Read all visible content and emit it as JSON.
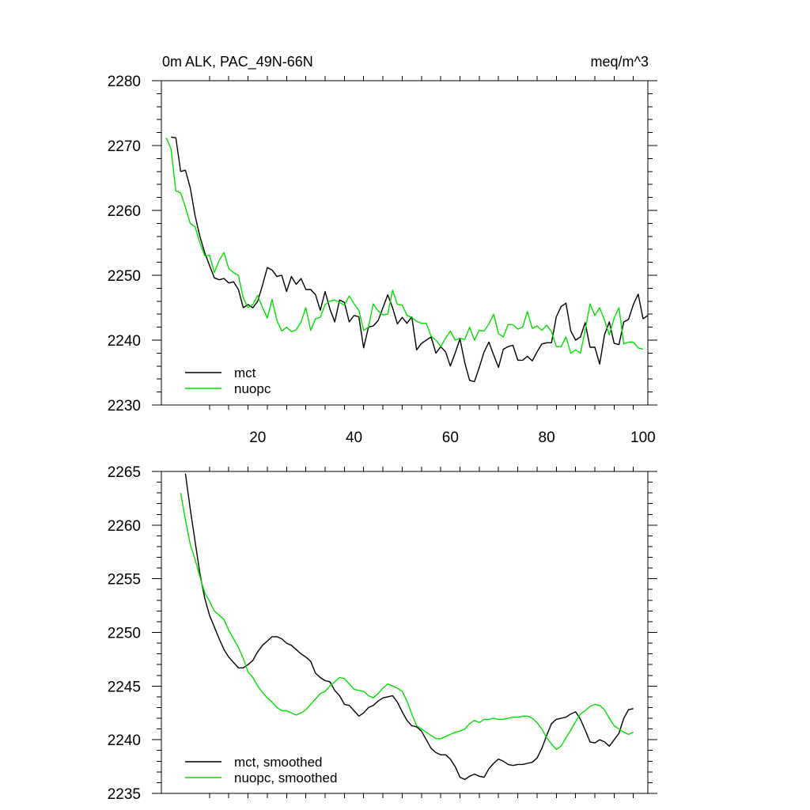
{
  "chart_data": [
    {
      "type": "line",
      "title": "0m ALK, PAC_49N-66N",
      "units": "meq/m^3",
      "xlim": [
        0,
        101
      ],
      "ylim": [
        2230,
        2280
      ],
      "xticks": [
        20,
        40,
        60,
        80,
        100
      ],
      "yticks": [
        2230,
        2240,
        2250,
        2260,
        2270,
        2280
      ],
      "legend": "bottom-left",
      "series": [
        {
          "name": "mct",
          "color": "#000000",
          "x": [
            2,
            3,
            4,
            5,
            6,
            7,
            8,
            9,
            10,
            11,
            12,
            13,
            14,
            15,
            16,
            17,
            18,
            19,
            20,
            21,
            22,
            23,
            24,
            25,
            26,
            27,
            28,
            29,
            30,
            31,
            32,
            33,
            34,
            35,
            36,
            37,
            38,
            39,
            40,
            41,
            42,
            43,
            44,
            45,
            46,
            47,
            48,
            49,
            50,
            51,
            52,
            53,
            54,
            55,
            56,
            57,
            58,
            59,
            60,
            61,
            62,
            63,
            64,
            65,
            66,
            67,
            68,
            69,
            70,
            71,
            72,
            73,
            74,
            75,
            76,
            77,
            78,
            79,
            80,
            81,
            82,
            83,
            84,
            85,
            86,
            87,
            88,
            89,
            90,
            91,
            92,
            93,
            94,
            95,
            96,
            97,
            98,
            99,
            100,
            101
          ],
          "y": [
            2271.3,
            2271.2,
            2266.0,
            2266.2,
            2263.5,
            2259.2,
            2256.0,
            2253.5,
            2251.5,
            2249.6,
            2249.3,
            2249.5,
            2248.8,
            2249.0,
            2247.8,
            2245.0,
            2245.5,
            2245.0,
            2246.0,
            2248.5,
            2251.2,
            2250.8,
            2249.8,
            2250.0,
            2247.5,
            2249.8,
            2248.6,
            2249.5,
            2247.8,
            2247.8,
            2247.0,
            2244.6,
            2247.5,
            2244.8,
            2242.8,
            2246.2,
            2245.8,
            2242.8,
            2243.8,
            2243.6,
            2238.8,
            2242.0,
            2242.2,
            2243.0,
            2245.0,
            2247.0,
            2245.0,
            2242.5,
            2243.5,
            2242.6,
            2243.6,
            2238.5,
            2239.5,
            2240.0,
            2240.5,
            2238.0,
            2239.0,
            2238.2,
            2236.0,
            2238.0,
            2240.2,
            2236.5,
            2233.8,
            2233.6,
            2235.8,
            2238.2,
            2239.7,
            2237.7,
            2235.8,
            2238.6,
            2239.0,
            2239.2,
            2236.9,
            2236.9,
            2237.5,
            2236.8,
            2238.2,
            2239.4,
            2239.6,
            2239.6,
            2243.6,
            2245.2,
            2245.7,
            2241.4,
            2240.0,
            2240.5,
            2242.7,
            2238.9,
            2238.9,
            2236.3,
            2240.8,
            2242.8,
            2239.5,
            2239.3,
            2242.8,
            2243.2,
            2245.5,
            2247.1,
            2243.3,
            2243.8
          ]
        },
        {
          "name": "nuopc",
          "color": "#00e000",
          "x": [
            1,
            2,
            3,
            4,
            5,
            6,
            7,
            8,
            9,
            10,
            11,
            12,
            13,
            14,
            15,
            16,
            17,
            18,
            19,
            20,
            21,
            22,
            23,
            24,
            25,
            26,
            27,
            28,
            29,
            30,
            31,
            32,
            33,
            34,
            35,
            36,
            37,
            38,
            39,
            40,
            41,
            42,
            43,
            44,
            45,
            46,
            47,
            48,
            49,
            50,
            51,
            52,
            53,
            54,
            55,
            56,
            57,
            58,
            59,
            60,
            61,
            62,
            63,
            64,
            65,
            66,
            67,
            68,
            69,
            70,
            71,
            72,
            73,
            74,
            75,
            76,
            77,
            78,
            79,
            80,
            81,
            82,
            83,
            84,
            85,
            86,
            87,
            88,
            89,
            90,
            91,
            92,
            93,
            94,
            95,
            96,
            97,
            98,
            99,
            100
          ],
          "y": [
            2271.2,
            2269.5,
            2263.0,
            2262.7,
            2260.5,
            2258.0,
            2257.5,
            2255.0,
            2253.0,
            2253.1,
            2250.4,
            2252.3,
            2253.5,
            2251.0,
            2250.4,
            2250.0,
            2246.5,
            2245.0,
            2245.5,
            2246.9,
            2245.0,
            2243.4,
            2246.3,
            2243.0,
            2241.4,
            2242.0,
            2241.3,
            2241.6,
            2242.8,
            2245.0,
            2241.5,
            2243.3,
            2243.5,
            2245.5,
            2246.0,
            2246.2,
            2245.8,
            2245.4,
            2246.8,
            2245.6,
            2244.6,
            2241.5,
            2242.0,
            2245.6,
            2244.5,
            2243.9,
            2244.0,
            2247.7,
            2245.5,
            2245.4,
            2243.8,
            2243.5,
            2242.9,
            2242.6,
            2242.6,
            2240.6,
            2240.0,
            2239.0,
            2240.3,
            2241.4,
            2240.0,
            2240.3,
            2240.1,
            2242.0,
            2240.0,
            2241.5,
            2241.4,
            2242.5,
            2244.0,
            2241.0,
            2240.5,
            2242.4,
            2242.4,
            2241.7,
            2242.0,
            2244.4,
            2241.8,
            2242.2,
            2241.5,
            2242.3,
            2241.3,
            2239.0,
            2239.0,
            2240.5,
            2238.0,
            2238.5,
            2238.0,
            2241.5,
            2245.6,
            2243.8,
            2245.0,
            2243.1,
            2240.8,
            2243.4,
            2245.0,
            2239.4,
            2239.7,
            2239.7,
            2238.8,
            2238.6
          ]
        }
      ]
    },
    {
      "type": "line",
      "xlim": [
        0,
        101
      ],
      "ylim": [
        2235,
        2265
      ],
      "xticks": [
        20,
        40,
        60,
        80,
        100
      ],
      "yticks": [
        2235,
        2240,
        2245,
        2250,
        2255,
        2260,
        2265
      ],
      "legend": "bottom-left",
      "series": [
        {
          "name": "mct, smoothed",
          "color": "#000000",
          "x": [
            5,
            6,
            7,
            8,
            9,
            10,
            11,
            12,
            13,
            14,
            15,
            16,
            17,
            18,
            19,
            20,
            21,
            22,
            23,
            24,
            25,
            26,
            27,
            28,
            29,
            30,
            31,
            32,
            33,
            34,
            35,
            36,
            37,
            38,
            39,
            40,
            41,
            42,
            43,
            44,
            45,
            46,
            47,
            48,
            49,
            50,
            51,
            52,
            53,
            54,
            55,
            56,
            57,
            58,
            59,
            60,
            61,
            62,
            63,
            64,
            65,
            66,
            67,
            68,
            69,
            70,
            71,
            72,
            73,
            74,
            75,
            76,
            77,
            78,
            79,
            80,
            81,
            82,
            83,
            84,
            85,
            86,
            87,
            88,
            89,
            90,
            91,
            92,
            93,
            94,
            95,
            96,
            97,
            98
          ],
          "y": [
            2264.8,
            2261.5,
            2258.5,
            2255.5,
            2253.2,
            2251.6,
            2250.5,
            2249.4,
            2248.4,
            2247.7,
            2247.2,
            2246.7,
            2246.7,
            2247.0,
            2247.4,
            2248.2,
            2248.8,
            2249.2,
            2249.6,
            2249.6,
            2249.4,
            2249.0,
            2248.8,
            2248.4,
            2248.0,
            2247.7,
            2247.3,
            2246.2,
            2245.8,
            2245.5,
            2245.4,
            2244.6,
            2244.1,
            2243.3,
            2243.2,
            2242.7,
            2242.2,
            2242.5,
            2243.0,
            2243.2,
            2243.6,
            2243.9,
            2244.0,
            2244.1,
            2243.5,
            2242.6,
            2241.8,
            2241.3,
            2241.2,
            2240.8,
            2240.0,
            2239.2,
            2238.8,
            2238.6,
            2238.6,
            2238.2,
            2237.5,
            2236.5,
            2236.3,
            2236.6,
            2236.8,
            2236.6,
            2236.5,
            2237.3,
            2237.8,
            2238.2,
            2238.0,
            2237.7,
            2237.6,
            2237.7,
            2237.7,
            2237.8,
            2237.9,
            2238.3,
            2239.2,
            2240.4,
            2241.5,
            2241.9,
            2242.0,
            2242.1,
            2242.4,
            2242.6,
            2241.9,
            2240.9,
            2239.8,
            2239.7,
            2240.0,
            2239.8,
            2239.4,
            2240.0,
            2240.6,
            2242.0,
            2242.8,
            2242.9
          ]
        },
        {
          "name": "nuopc, smoothed",
          "color": "#00e000",
          "x": [
            4,
            5,
            6,
            7,
            8,
            9,
            10,
            11,
            12,
            13,
            14,
            15,
            16,
            17,
            18,
            19,
            20,
            21,
            22,
            23,
            24,
            25,
            26,
            27,
            28,
            29,
            30,
            31,
            32,
            33,
            34,
            35,
            36,
            37,
            38,
            39,
            40,
            41,
            42,
            43,
            44,
            45,
            46,
            47,
            48,
            49,
            50,
            51,
            52,
            53,
            54,
            55,
            56,
            57,
            58,
            59,
            60,
            61,
            62,
            63,
            64,
            65,
            66,
            67,
            68,
            69,
            70,
            71,
            72,
            73,
            74,
            75,
            76,
            77,
            78,
            79,
            80,
            81,
            82,
            83,
            84,
            85,
            86,
            87,
            88,
            89,
            90,
            91,
            92,
            93,
            94,
            95,
            96,
            97,
            98
          ],
          "y": [
            2263.0,
            2260.5,
            2258.2,
            2256.8,
            2255.2,
            2253.7,
            2252.9,
            2252.0,
            2251.6,
            2251.2,
            2250.2,
            2249.4,
            2248.6,
            2247.6,
            2246.3,
            2245.8,
            2245.0,
            2244.4,
            2243.9,
            2243.5,
            2243.0,
            2242.7,
            2242.7,
            2242.5,
            2242.3,
            2242.5,
            2242.8,
            2243.3,
            2243.8,
            2244.3,
            2244.5,
            2245.0,
            2245.4,
            2245.8,
            2245.7,
            2245.2,
            2244.7,
            2244.6,
            2244.5,
            2244.1,
            2243.9,
            2244.3,
            2244.8,
            2245.2,
            2245.0,
            2244.8,
            2244.5,
            2243.6,
            2242.4,
            2241.3,
            2241.0,
            2240.7,
            2240.4,
            2240.1,
            2240.1,
            2240.3,
            2240.5,
            2240.7,
            2240.8,
            2241.0,
            2241.5,
            2241.8,
            2241.6,
            2241.9,
            2241.9,
            2242.0,
            2241.9,
            2241.9,
            2242.0,
            2242.1,
            2242.1,
            2242.2,
            2242.2,
            2242.0,
            2241.6,
            2241.0,
            2240.2,
            2239.6,
            2239.1,
            2239.4,
            2240.2,
            2240.9,
            2241.7,
            2242.4,
            2242.7,
            2243.1,
            2243.3,
            2243.2,
            2242.8,
            2242.0,
            2241.3,
            2241.0,
            2240.7,
            2240.5,
            2240.7
          ]
        }
      ]
    }
  ]
}
